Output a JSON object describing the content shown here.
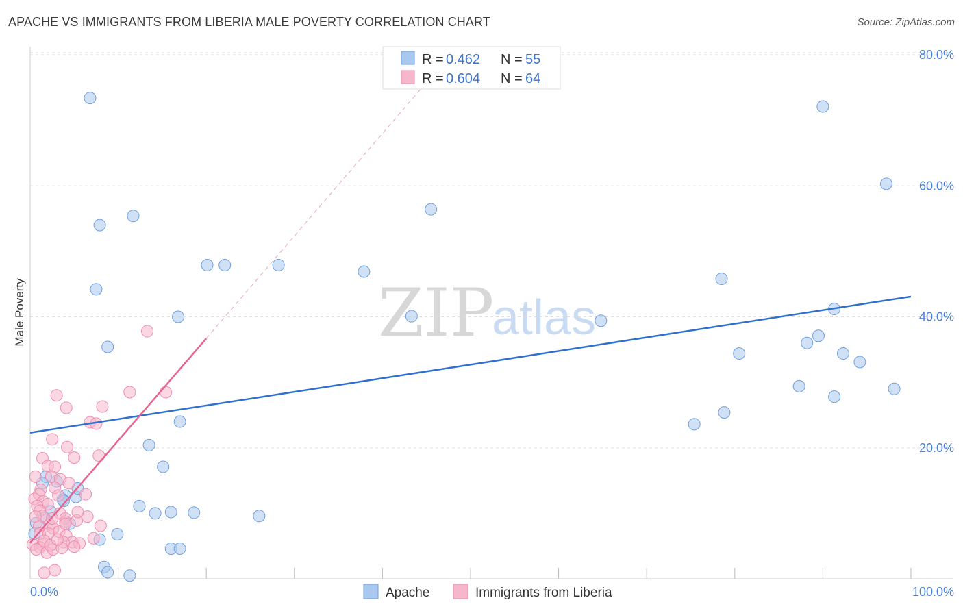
{
  "header": {
    "title": "APACHE VS IMMIGRANTS FROM LIBERIA MALE POVERTY CORRELATION CHART",
    "source": "Source: ZipAtlas.com"
  },
  "watermark": {
    "zip": "ZIP",
    "atlas": "atlas"
  },
  "legend": {
    "apache": {
      "r_label": "R =",
      "r_value": "0.462",
      "n_label": "N =",
      "n_value": "55"
    },
    "liberia": {
      "r_label": "R =",
      "r_value": "0.604",
      "n_label": "N =",
      "n_value": "64"
    }
  },
  "bottom_legend": {
    "apache": "Apache",
    "liberia": "Immigrants from Liberia"
  },
  "colors": {
    "apache_fill": "#a9c8ef",
    "apache_stroke": "#6d9fe0",
    "apache_line": "#2f6fd0",
    "liberia_fill": "#f6b6cb",
    "liberia_stroke": "#ee8db0",
    "liberia_line": "#e8638f",
    "grid": "#dddddd",
    "axis_label": "#4a7fd6"
  },
  "chart_data": {
    "type": "scatter",
    "title": "APACHE VS IMMIGRANTS FROM LIBERIA MALE POVERTY CORRELATION CHART",
    "xlabel": "",
    "ylabel": "Male Poverty",
    "xlim": [
      0,
      100
    ],
    "ylim": [
      0,
      80
    ],
    "x_tick_labels": [
      "0.0%",
      "100.0%"
    ],
    "y_ticks": [
      20,
      40,
      60,
      80
    ],
    "y_tick_labels": [
      "20.0%",
      "40.0%",
      "60.0%",
      "80.0%"
    ],
    "grid": true,
    "legend_position": "top-center",
    "series": [
      {
        "name": "Apache",
        "r": 0.462,
        "n": 55,
        "trend": {
          "x": [
            0,
            100
          ],
          "y": [
            22.3,
            43.1
          ]
        },
        "points": [
          [
            6.8,
            73.4
          ],
          [
            11.7,
            55.4
          ],
          [
            7.9,
            54.0
          ],
          [
            7.5,
            44.2
          ],
          [
            16.8,
            40.0
          ],
          [
            20.1,
            47.9
          ],
          [
            22.1,
            47.9
          ],
          [
            28.2,
            47.9
          ],
          [
            37.9,
            46.9
          ],
          [
            43.3,
            40.1
          ],
          [
            8.8,
            35.4
          ],
          [
            17.0,
            24.0
          ],
          [
            13.5,
            20.4
          ],
          [
            15.1,
            17.1
          ],
          [
            1.8,
            15.6
          ],
          [
            1.4,
            14.6
          ],
          [
            3.0,
            14.9
          ],
          [
            4.0,
            12.7
          ],
          [
            3.7,
            12.1
          ],
          [
            5.2,
            12.5
          ],
          [
            5.4,
            13.8
          ],
          [
            3.8,
            11.9
          ],
          [
            2.3,
            10.3
          ],
          [
            1.6,
            9.3
          ],
          [
            0.7,
            8.5
          ],
          [
            0.5,
            6.9
          ],
          [
            4.5,
            8.4
          ],
          [
            12.4,
            11.1
          ],
          [
            14.2,
            10.0
          ],
          [
            16.0,
            10.2
          ],
          [
            18.6,
            10.1
          ],
          [
            26.0,
            9.6
          ],
          [
            9.9,
            6.8
          ],
          [
            7.9,
            6.0
          ],
          [
            16.0,
            4.6
          ],
          [
            17.0,
            4.6
          ],
          [
            8.4,
            1.8
          ],
          [
            8.8,
            1.0
          ],
          [
            11.3,
            0.5
          ],
          [
            45.5,
            56.4
          ],
          [
            64.8,
            39.4
          ],
          [
            78.5,
            45.8
          ],
          [
            80.5,
            34.4
          ],
          [
            90.0,
            72.1
          ],
          [
            97.2,
            60.3
          ],
          [
            91.3,
            41.2
          ],
          [
            89.5,
            37.1
          ],
          [
            88.2,
            36.0
          ],
          [
            92.3,
            34.4
          ],
          [
            94.2,
            33.1
          ],
          [
            87.3,
            29.4
          ],
          [
            98.1,
            29.0
          ],
          [
            91.3,
            27.8
          ],
          [
            78.8,
            25.4
          ],
          [
            75.4,
            23.6
          ]
        ]
      },
      {
        "name": "Immigrants from Liberia",
        "r": 0.604,
        "n": 64,
        "trend": {
          "x": [
            0,
            20
          ],
          "y": [
            5.5,
            36.7
          ]
        },
        "trend_extension": {
          "x": [
            20,
            48
          ],
          "y": [
            36.7,
            80.5
          ]
        },
        "points": [
          [
            13.3,
            37.8
          ],
          [
            11.3,
            28.5
          ],
          [
            3.0,
            28.0
          ],
          [
            15.4,
            28.5
          ],
          [
            4.1,
            26.1
          ],
          [
            8.2,
            26.3
          ],
          [
            6.8,
            23.9
          ],
          [
            7.5,
            23.7
          ],
          [
            2.5,
            21.3
          ],
          [
            4.2,
            20.1
          ],
          [
            7.8,
            18.8
          ],
          [
            1.4,
            18.4
          ],
          [
            2.0,
            17.2
          ],
          [
            2.8,
            17.1
          ],
          [
            5.0,
            18.5
          ],
          [
            0.6,
            15.6
          ],
          [
            2.4,
            15.6
          ],
          [
            3.4,
            15.2
          ],
          [
            4.4,
            14.6
          ],
          [
            1.2,
            13.6
          ],
          [
            2.8,
            13.9
          ],
          [
            3.2,
            12.7
          ],
          [
            1.0,
            12.9
          ],
          [
            0.5,
            12.2
          ],
          [
            1.5,
            11.8
          ],
          [
            2.0,
            11.4
          ],
          [
            0.8,
            11.1
          ],
          [
            6.3,
            12.9
          ],
          [
            1.1,
            10.4
          ],
          [
            1.4,
            9.6
          ],
          [
            3.4,
            10.0
          ],
          [
            0.6,
            9.5
          ],
          [
            4.0,
            9.2
          ],
          [
            5.3,
            8.9
          ],
          [
            4.0,
            8.7
          ],
          [
            8.0,
            8.1
          ],
          [
            2.2,
            8.3
          ],
          [
            1.0,
            8.0
          ],
          [
            2.6,
            7.7
          ],
          [
            1.1,
            6.9
          ],
          [
            2.1,
            6.9
          ],
          [
            3.3,
            7.2
          ],
          [
            4.1,
            6.6
          ],
          [
            0.3,
            5.2
          ],
          [
            1.4,
            5.2
          ],
          [
            1.1,
            4.8
          ],
          [
            4.8,
            5.6
          ],
          [
            4.0,
            8.4
          ],
          [
            2.5,
            9.2
          ],
          [
            6.5,
            9.5
          ],
          [
            7.2,
            6.2
          ],
          [
            3.8,
            5.6
          ],
          [
            5.6,
            5.4
          ],
          [
            5.4,
            10.2
          ],
          [
            0.7,
            4.5
          ],
          [
            1.6,
            5.8
          ],
          [
            1.9,
            4.0
          ],
          [
            2.6,
            4.5
          ],
          [
            3.6,
            4.7
          ],
          [
            5.0,
            4.9
          ],
          [
            1.6,
            0.9
          ],
          [
            2.8,
            1.3
          ],
          [
            2.3,
            5.1
          ],
          [
            3.1,
            6.0
          ]
        ]
      }
    ]
  }
}
